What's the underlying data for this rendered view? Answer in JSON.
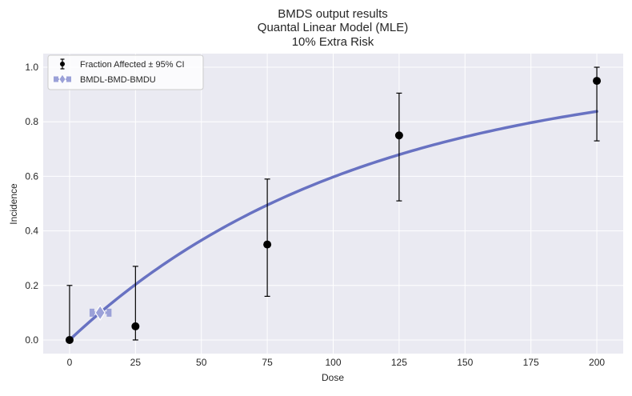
{
  "chart_data": {
    "type": "scatter",
    "title_lines": [
      "BMDS output results",
      "Quantal Linear Model (MLE)",
      "10% Extra Risk"
    ],
    "xlabel": "Dose",
    "ylabel": "Incidence",
    "xlim": [
      -10,
      210
    ],
    "ylim": [
      -0.05,
      1.05
    ],
    "xticks": [
      0,
      25,
      50,
      75,
      100,
      125,
      150,
      175,
      200
    ],
    "xtick_labels": [
      "0",
      "25",
      "50",
      "75",
      "100",
      "125",
      "150",
      "175",
      "200"
    ],
    "yticks": [
      0.0,
      0.2,
      0.4,
      0.6,
      0.8,
      1.0
    ],
    "ytick_labels": [
      "0.0",
      "0.2",
      "0.4",
      "0.6",
      "0.8",
      "1.0"
    ],
    "grid": true,
    "legend_position": "top-left",
    "legend": [
      "Fraction Affected ± 95% CI",
      "BMDL-BMD-BMDU"
    ],
    "observed": {
      "name": "Fraction Affected ± 95% CI",
      "x": [
        0,
        25,
        75,
        125,
        200
      ],
      "y": [
        0.0,
        0.05,
        0.35,
        0.75,
        0.95
      ],
      "ci_lower": [
        0.0,
        0.0,
        0.16,
        0.51,
        0.73
      ],
      "ci_upper": [
        0.2,
        0.27,
        0.59,
        0.905,
        1.0
      ]
    },
    "model_curve": {
      "model": "Quantal Linear",
      "background": 0.0,
      "slope": 0.0091,
      "x_range": [
        0,
        200
      ]
    },
    "bmd": {
      "name": "BMDL-BMD-BMDU",
      "bmd": 11.6,
      "bmdl": 8.5,
      "bmdu": 15.0,
      "response": 0.1
    },
    "colors": {
      "background": "#eaeaf2",
      "grid": "#ffffff",
      "curve": "#6872c2",
      "observed": "#000000",
      "bmd_marker": "#9ba1d8"
    }
  }
}
